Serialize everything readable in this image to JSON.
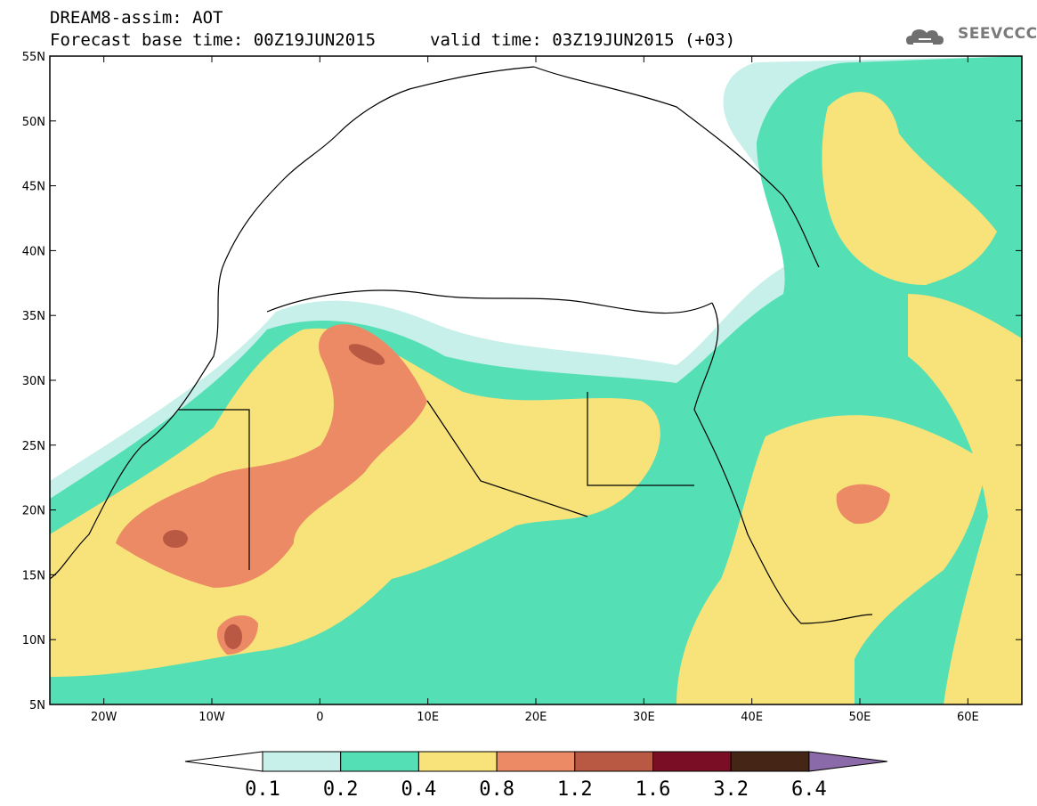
{
  "header": {
    "title": "DREAM8-assim: AOT",
    "base_time": "Forecast base time: 00Z19JUN2015",
    "valid_time": "valid time: 03Z19JUN2015 (+03)"
  },
  "logo": {
    "text": "SEEVCCC",
    "icon": "cloud-icon"
  },
  "map": {
    "lat_labels": [
      "55N",
      "50N",
      "45N",
      "40N",
      "35N",
      "30N",
      "25N",
      "20N",
      "15N",
      "10N",
      "5N"
    ],
    "lon_labels": [
      "20W",
      "10W",
      "0",
      "10E",
      "20E",
      "30E",
      "40E",
      "50E",
      "60E"
    ],
    "lat_range": [
      5,
      55
    ],
    "lon_range": [
      -25,
      65
    ]
  },
  "colorbar": {
    "levels": [
      "0.1",
      "0.2",
      "0.4",
      "0.8",
      "1.2",
      "1.6",
      "3.2",
      "6.4"
    ],
    "colors": [
      "#ffffff",
      "#c6f0e9",
      "#55dfb4",
      "#f7e379",
      "#ec8a66",
      "#b95843",
      "#7a0e25",
      "#452616",
      "#8a6aa8"
    ]
  },
  "colors": {
    "c02": "#c6f0e9",
    "c04": "#55dfb4",
    "c08": "#f7e379",
    "c12": "#ec8a66",
    "c16": "#b95843"
  }
}
